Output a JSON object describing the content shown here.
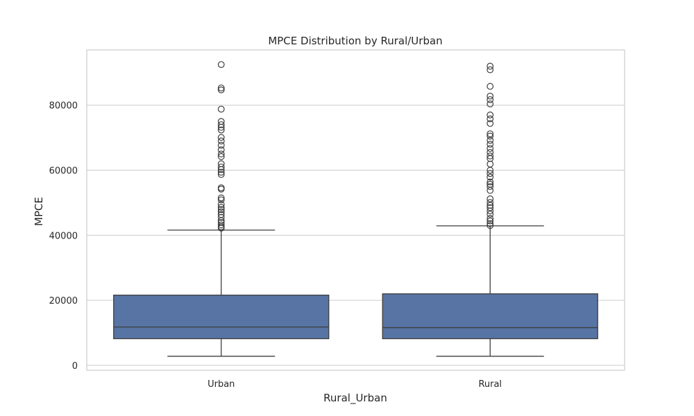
{
  "chart_data": {
    "type": "box",
    "title": "MPCE Distribution by Rural/Urban",
    "xlabel": "Rural_Urban",
    "ylabel": "MPCE",
    "ylim": [
      -1500,
      97000
    ],
    "yticks": [
      0,
      20000,
      40000,
      60000,
      80000
    ],
    "grid": true,
    "colors": {
      "box_fill": "#5874a4",
      "line": "#3d3d3d",
      "grid": "#cccccc",
      "frame": "#cccccc"
    },
    "categories": [
      "Urban",
      "Rural"
    ],
    "boxes": [
      {
        "category": "Urban",
        "whisker_low": 2800,
        "q1": 8200,
        "median": 11800,
        "q3": 21600,
        "whisker_high": 41600,
        "outliers": [
          92500,
          85300,
          84700,
          78800,
          75000,
          74000,
          73200,
          72400,
          70100,
          69000,
          67700,
          66300,
          65000,
          64200,
          62000,
          61000,
          60200,
          59400,
          58700,
          54600,
          54200,
          51500,
          50900,
          49500,
          48600,
          47900,
          47200,
          46400,
          45500,
          44500,
          43900,
          43200,
          42600,
          42200
        ]
      },
      {
        "category": "Rural",
        "whisker_low": 2800,
        "q1": 8200,
        "median": 11600,
        "q3": 22000,
        "whisker_high": 42900,
        "outliers": [
          92000,
          90900,
          85800,
          82800,
          81700,
          80400,
          77000,
          75800,
          74400,
          71200,
          70500,
          69200,
          68000,
          66700,
          65500,
          64400,
          63600,
          61900,
          60000,
          59000,
          57900,
          56400,
          55700,
          55000,
          53800,
          51200,
          50100,
          49200,
          48500,
          47500,
          46500,
          45200,
          44400,
          43600,
          43000
        ]
      }
    ]
  }
}
